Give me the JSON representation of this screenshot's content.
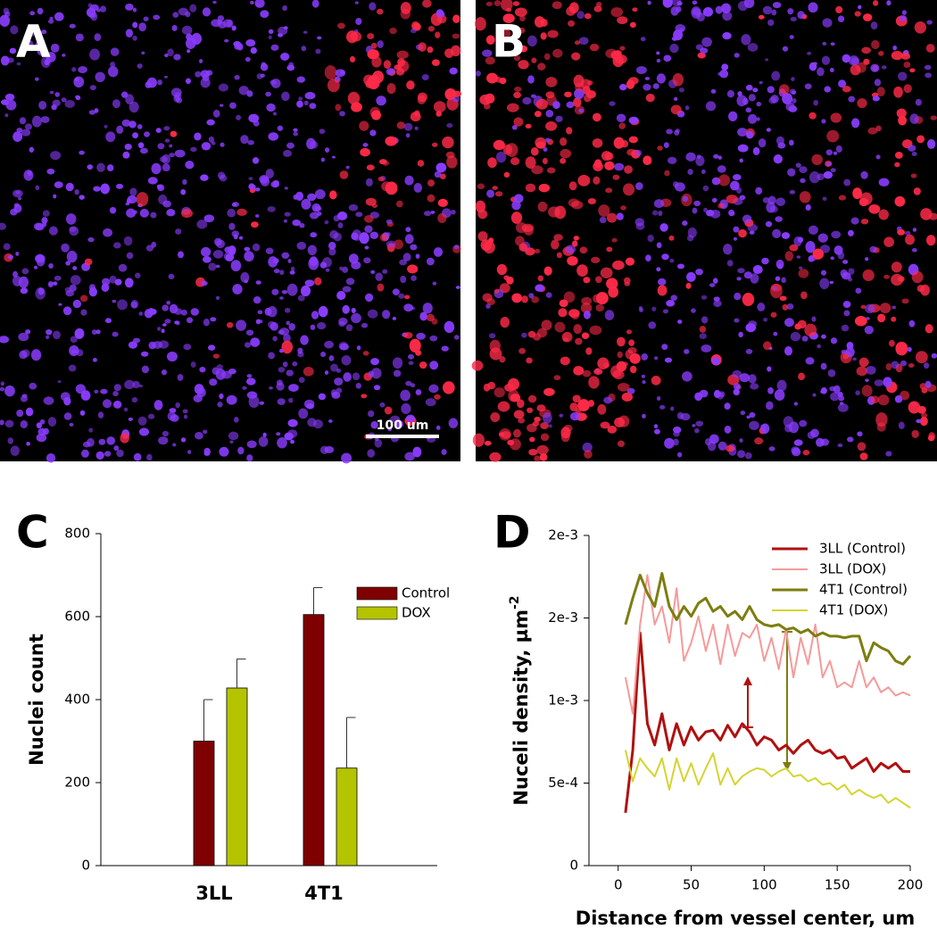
{
  "images": [
    {
      "label": "A",
      "scale_bar": "100 um"
    },
    {
      "label": "B"
    }
  ],
  "chart_data": [
    {
      "type": "bar",
      "panel_label": "C",
      "ylabel": "Nuclei count",
      "categories": [
        "3LL",
        "4T1"
      ],
      "series": [
        {
          "name": "Control",
          "color": "#7f0000",
          "values": [
            300,
            605
          ],
          "errors": [
            100,
            65
          ]
        },
        {
          "name": "DOX",
          "color": "#b5c400",
          "values": [
            428,
            235
          ],
          "errors": [
            70,
            122
          ]
        }
      ],
      "ylim": [
        0,
        800
      ],
      "yticks": [
        0,
        200,
        400,
        600,
        800
      ],
      "legend": "upper right"
    },
    {
      "type": "line",
      "panel_label": "D",
      "xlabel": "Distance from vessel center, um",
      "ylabel": "Nuceli density, µm",
      "ylabel_superscript": "-2",
      "x": [
        5,
        10,
        15,
        20,
        25,
        30,
        35,
        40,
        45,
        50,
        55,
        60,
        65,
        70,
        75,
        80,
        85,
        90,
        95,
        100,
        105,
        110,
        115,
        120,
        125,
        130,
        135,
        140,
        145,
        150,
        155,
        160,
        165,
        170,
        175,
        180,
        185,
        190,
        195,
        200
      ],
      "series": [
        {
          "name": "3LL (Control)",
          "color": "#b01010",
          "width": 3,
          "values": [
            0.00032,
            0.0007,
            0.00141,
            0.00086,
            0.00073,
            0.00092,
            0.0007,
            0.00086,
            0.00073,
            0.00084,
            0.00076,
            0.00081,
            0.00082,
            0.00076,
            0.00085,
            0.00078,
            0.00086,
            0.00081,
            0.00073,
            0.00078,
            0.00076,
            0.0007,
            0.00073,
            0.00068,
            0.00073,
            0.00076,
            0.0007,
            0.00068,
            0.0007,
            0.00065,
            0.00066,
            0.00059,
            0.00062,
            0.00065,
            0.00057,
            0.00062,
            0.00059,
            0.00062,
            0.00057,
            0.00057
          ]
        },
        {
          "name": "3LL (DOX)",
          "color": "#f59a9a",
          "width": 2,
          "values": [
            0.00114,
            0.00092,
            0.00146,
            0.00176,
            0.00146,
            0.00157,
            0.00135,
            0.00168,
            0.00124,
            0.00135,
            0.00151,
            0.0013,
            0.00146,
            0.00122,
            0.00146,
            0.00127,
            0.00141,
            0.00138,
            0.00146,
            0.00124,
            0.00138,
            0.00119,
            0.00143,
            0.00114,
            0.00138,
            0.00122,
            0.00146,
            0.00114,
            0.00124,
            0.00108,
            0.00111,
            0.00108,
            0.00124,
            0.00108,
            0.00114,
            0.00105,
            0.00108,
            0.00103,
            0.00105,
            0.00103
          ]
        },
        {
          "name": "4T1 (Control)",
          "color": "#7d7d10",
          "width": 3,
          "values": [
            0.00146,
            0.00162,
            0.00176,
            0.00165,
            0.00157,
            0.00177,
            0.00157,
            0.00149,
            0.00157,
            0.00151,
            0.00159,
            0.00162,
            0.00154,
            0.00157,
            0.00151,
            0.00154,
            0.00149,
            0.00157,
            0.00149,
            0.00146,
            0.00145,
            0.00146,
            0.00143,
            0.00144,
            0.00141,
            0.00143,
            0.00139,
            0.00141,
            0.00139,
            0.00139,
            0.00138,
            0.00139,
            0.00139,
            0.00124,
            0.00135,
            0.00132,
            0.0013,
            0.00124,
            0.00122,
            0.00127
          ]
        },
        {
          "name": "4T1 (DOX)",
          "color": "#d4d430",
          "width": 2,
          "values": [
            0.0007,
            0.00051,
            0.00065,
            0.00059,
            0.00054,
            0.00065,
            0.00046,
            0.00065,
            0.00051,
            0.00062,
            0.00049,
            0.00059,
            0.00068,
            0.00049,
            0.00059,
            0.00049,
            0.00054,
            0.00057,
            0.00059,
            0.00058,
            0.00054,
            0.00057,
            0.00059,
            0.00054,
            0.00055,
            0.00051,
            0.00053,
            0.00049,
            0.0005,
            0.00046,
            0.00049,
            0.00043,
            0.00046,
            0.00043,
            0.00041,
            0.00043,
            0.00038,
            0.00041,
            0.00038,
            0.00035
          ]
        }
      ],
      "xlim": [
        -20,
        200
      ],
      "xticks": [
        0,
        50,
        100,
        150,
        200
      ],
      "ylim": [
        0,
        0.002
      ],
      "yticks": [
        0,
        {
          "value": 0.0005,
          "label": "5e-4"
        },
        {
          "value": 0.001,
          "label": "1e-3"
        },
        {
          "value": 0.0015,
          "label": "2e-3"
        },
        {
          "value": 0.002,
          "label": "2e-3"
        }
      ],
      "legend": "upper right"
    }
  ]
}
